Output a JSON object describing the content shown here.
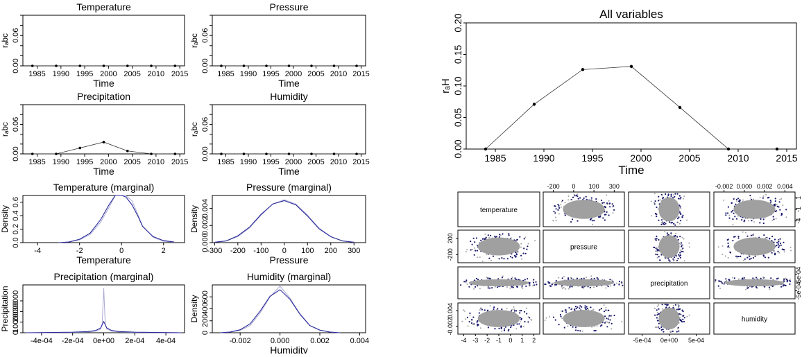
{
  "chart_data": [
    {
      "id": "temp",
      "type": "line",
      "title": "Temperature",
      "xlabel": "Time",
      "ylabel": "rₐbc",
      "x": [
        1984,
        1989,
        1994,
        1999,
        2004,
        2009,
        2014
      ],
      "values": [
        0,
        0,
        0,
        0,
        0,
        0,
        0
      ],
      "ylim": [
        0,
        0.1
      ],
      "xticks": [
        1985,
        1990,
        1995,
        2000,
        2005,
        2010,
        2015
      ],
      "yticks": [
        0,
        0.02,
        0.04,
        0.06,
        0.08,
        0.1
      ],
      "yticklabels": [
        "0.00",
        "",
        "",
        "0.06",
        "",
        ""
      ]
    },
    {
      "id": "pres",
      "type": "line",
      "title": "Pressure",
      "xlabel": "Time",
      "ylabel": "rₐbc",
      "x": [
        1984,
        1989,
        1994,
        1999,
        2004,
        2009,
        2014
      ],
      "values": [
        0,
        0,
        0,
        0,
        0,
        0,
        0
      ],
      "ylim": [
        0,
        0.1
      ],
      "xticks": [
        1985,
        1990,
        1995,
        2000,
        2005,
        2010,
        2015
      ],
      "yticks": [
        0,
        0.02,
        0.04,
        0.06,
        0.08,
        0.1
      ],
      "yticklabels": [
        "0.00",
        "",
        "",
        "0.06",
        "",
        ""
      ]
    },
    {
      "id": "prec",
      "type": "line",
      "title": "Precipitation",
      "xlabel": "Time",
      "ylabel": "rₐbc",
      "x": [
        1984,
        1989,
        1994,
        1999,
        2004,
        2009,
        2014
      ],
      "values": [
        0,
        0,
        0.012,
        0.024,
        0.006,
        0,
        0
      ],
      "ylim": [
        0,
        0.1
      ],
      "xticks": [
        1985,
        1990,
        1995,
        2000,
        2005,
        2010,
        2015
      ],
      "yticks": [
        0,
        0.02,
        0.04,
        0.06,
        0.08,
        0.1
      ],
      "yticklabels": [
        "0.00",
        "",
        "",
        "0.06",
        "",
        ""
      ]
    },
    {
      "id": "humi",
      "type": "line",
      "title": "Humidity",
      "xlabel": "Time",
      "ylabel": "rₐbc",
      "x": [
        1984,
        1989,
        1994,
        1999,
        2004,
        2009,
        2014
      ],
      "values": [
        0,
        0,
        0,
        0,
        0,
        0,
        0
      ],
      "ylim": [
        0,
        0.1
      ],
      "xticks": [
        1985,
        1990,
        1995,
        2000,
        2005,
        2010,
        2015
      ],
      "yticks": [
        0,
        0.02,
        0.04,
        0.06,
        0.08,
        0.1
      ],
      "yticklabels": [
        "0.00",
        "",
        "",
        "0.06",
        "",
        ""
      ]
    },
    {
      "id": "tmarg",
      "type": "line",
      "title": "Temperature (marginal)",
      "xlabel": "Temperature",
      "ylabel": "Density",
      "x": [
        -3,
        -2.5,
        -2,
        -1.5,
        -1,
        -0.6,
        -0.3,
        0,
        0.2,
        0.5,
        0.8,
        1,
        1.5,
        2,
        2.5
      ],
      "series": [
        {
          "values": [
            0,
            0.01,
            0.04,
            0.12,
            0.3,
            0.52,
            0.7,
            0.78,
            0.76,
            0.62,
            0.4,
            0.25,
            0.08,
            0.02,
            0.005
          ]
        },
        {
          "values": [
            0,
            0.01,
            0.05,
            0.14,
            0.34,
            0.56,
            0.72,
            0.72,
            0.68,
            0.56,
            0.38,
            0.24,
            0.09,
            0.03,
            0.01
          ]
        }
      ],
      "xlim": [
        -4.7,
        3
      ],
      "ylim": [
        0,
        0.7
      ],
      "xticks": [
        -4,
        -2,
        0,
        2
      ],
      "yticks": [
        0,
        0.2,
        0.4,
        0.6
      ],
      "yticklabels": [
        "0.0",
        "0.2",
        "0.4",
        "0.6"
      ]
    },
    {
      "id": "pmarg",
      "type": "line",
      "title": "Pressure (marginal)",
      "xlabel": "Pressure",
      "ylabel": "Density",
      "x": [
        -300,
        -250,
        -200,
        -150,
        -100,
        -50,
        0,
        50,
        100,
        150,
        200,
        250,
        300
      ],
      "series": [
        {
          "values": [
            5e-05,
            0.0002,
            0.0007,
            0.0017,
            0.0032,
            0.0045,
            0.005,
            0.0045,
            0.0032,
            0.0017,
            0.0007,
            0.0002,
            5e-05
          ]
        },
        {
          "values": [
            5e-05,
            0.0002,
            0.0008,
            0.0018,
            0.0033,
            0.0045,
            0.0049,
            0.0044,
            0.0031,
            0.0016,
            0.0007,
            0.0002,
            5e-05
          ]
        }
      ],
      "xlim": [
        -310,
        350
      ],
      "ylim": [
        0,
        0.0055
      ],
      "xticks": [
        -300,
        -200,
        -100,
        0,
        100,
        200,
        300
      ],
      "yticks": [
        0,
        0.002,
        0.004
      ],
      "yticklabels": [
        "0.000",
        "0.002",
        "0.004"
      ]
    },
    {
      "id": "rmarg",
      "type": "line",
      "title": "Precipitation (marginal)",
      "xlabel": "",
      "ylabel": "Precipitation",
      "x": [
        -0.0005,
        -0.0002,
        -0.0001,
        -5e-05,
        -2e-05,
        -1e-05,
        0,
        1e-05,
        2e-05,
        5e-05,
        0.0001,
        0.0002,
        0.0005
      ],
      "series": [
        {
          "values": [
            0,
            300,
            700,
            1500,
            3500,
            8000,
            42000,
            8000,
            3500,
            1500,
            700,
            300,
            0
          ]
        },
        {
          "values": [
            0,
            500,
            1100,
            2200,
            4500,
            7500,
            10500,
            7500,
            4500,
            2200,
            1100,
            500,
            0
          ]
        }
      ],
      "xlim": [
        -0.00052,
        0.00052
      ],
      "ylim": [
        0,
        45000
      ],
      "xticks": [
        -0.0004,
        -0.0002,
        0,
        0.0002,
        0.0004
      ],
      "xticklabels": [
        "-4e-04",
        "-2e-04",
        "0e+00",
        "2e-04",
        "4e-04"
      ],
      "yticks": [
        0,
        10000,
        20000,
        30000
      ],
      "yticklabels": [
        "0",
        "10000",
        "20000",
        "30000"
      ]
    },
    {
      "id": "hmarg",
      "type": "line",
      "title": "Humidity (marginal)",
      "xlabel": "Humidity",
      "ylabel": "Density",
      "x": [
        -0.003,
        -0.0025,
        -0.002,
        -0.0015,
        -0.001,
        -0.0005,
        0,
        0.0005,
        0.001,
        0.0015,
        0.002,
        0.0025,
        0.003
      ],
      "series": [
        {
          "values": [
            0,
            10,
            40,
            120,
            330,
            600,
            780,
            580,
            320,
            120,
            40,
            10,
            0
          ]
        },
        {
          "values": [
            0,
            12,
            50,
            150,
            360,
            610,
            720,
            560,
            310,
            120,
            45,
            12,
            0
          ]
        }
      ],
      "xlim": [
        -0.0034,
        0.0043
      ],
      "ylim": [
        0,
        800
      ],
      "xticks": [
        -0.002,
        0,
        0.002,
        0.004
      ],
      "xticklabels": [
        "-0.002",
        "0.000",
        "0.002",
        "0.004"
      ],
      "yticks": [
        0,
        200,
        400,
        600
      ],
      "yticklabels": [
        "0",
        "200",
        "400",
        "600"
      ]
    },
    {
      "id": "all",
      "type": "line",
      "title": "All variables",
      "xlabel": "Time",
      "ylabel": "rₐH",
      "x": [
        1984,
        1989,
        1994,
        1999,
        2004,
        2009,
        2014
      ],
      "values": [
        0,
        0.071,
        0.126,
        0.131,
        0.066,
        0,
        0
      ],
      "ylim": [
        0,
        0.2
      ],
      "xticks": [
        1985,
        1990,
        1995,
        2000,
        2005,
        2010,
        2015
      ],
      "yticks": [
        0,
        0.05,
        0.1,
        0.15,
        0.2
      ],
      "yticklabels": [
        "0.00",
        "0.05",
        "0.10",
        "0.15",
        "0.20"
      ]
    },
    {
      "id": "pairs",
      "type": "scatter",
      "variables": [
        "temperature",
        "pressure",
        "precipitation",
        "humidity"
      ],
      "top_ticks": [
        [
          "-200",
          "0",
          "100",
          "300"
        ],
        [
          "-0.002",
          "0.000",
          "0.002",
          "0.004"
        ]
      ],
      "bottom_ticks": [
        [
          "-4",
          "-3",
          "-2",
          "-1",
          "0",
          "1",
          "2"
        ],
        [
          "-5e-04",
          "0e+00",
          "5e-04"
        ]
      ],
      "left_ticks": [
        [
          "200",
          "-200"
        ],
        [
          "0.004",
          "-0.002"
        ]
      ],
      "right_ticks": [
        [
          "1",
          "-1",
          "-4"
        ],
        [
          "5e-04",
          "-5e-04"
        ]
      ],
      "colors": {
        "fill": "#a0a0a0",
        "edge": "#1a1a6e"
      }
    }
  ]
}
